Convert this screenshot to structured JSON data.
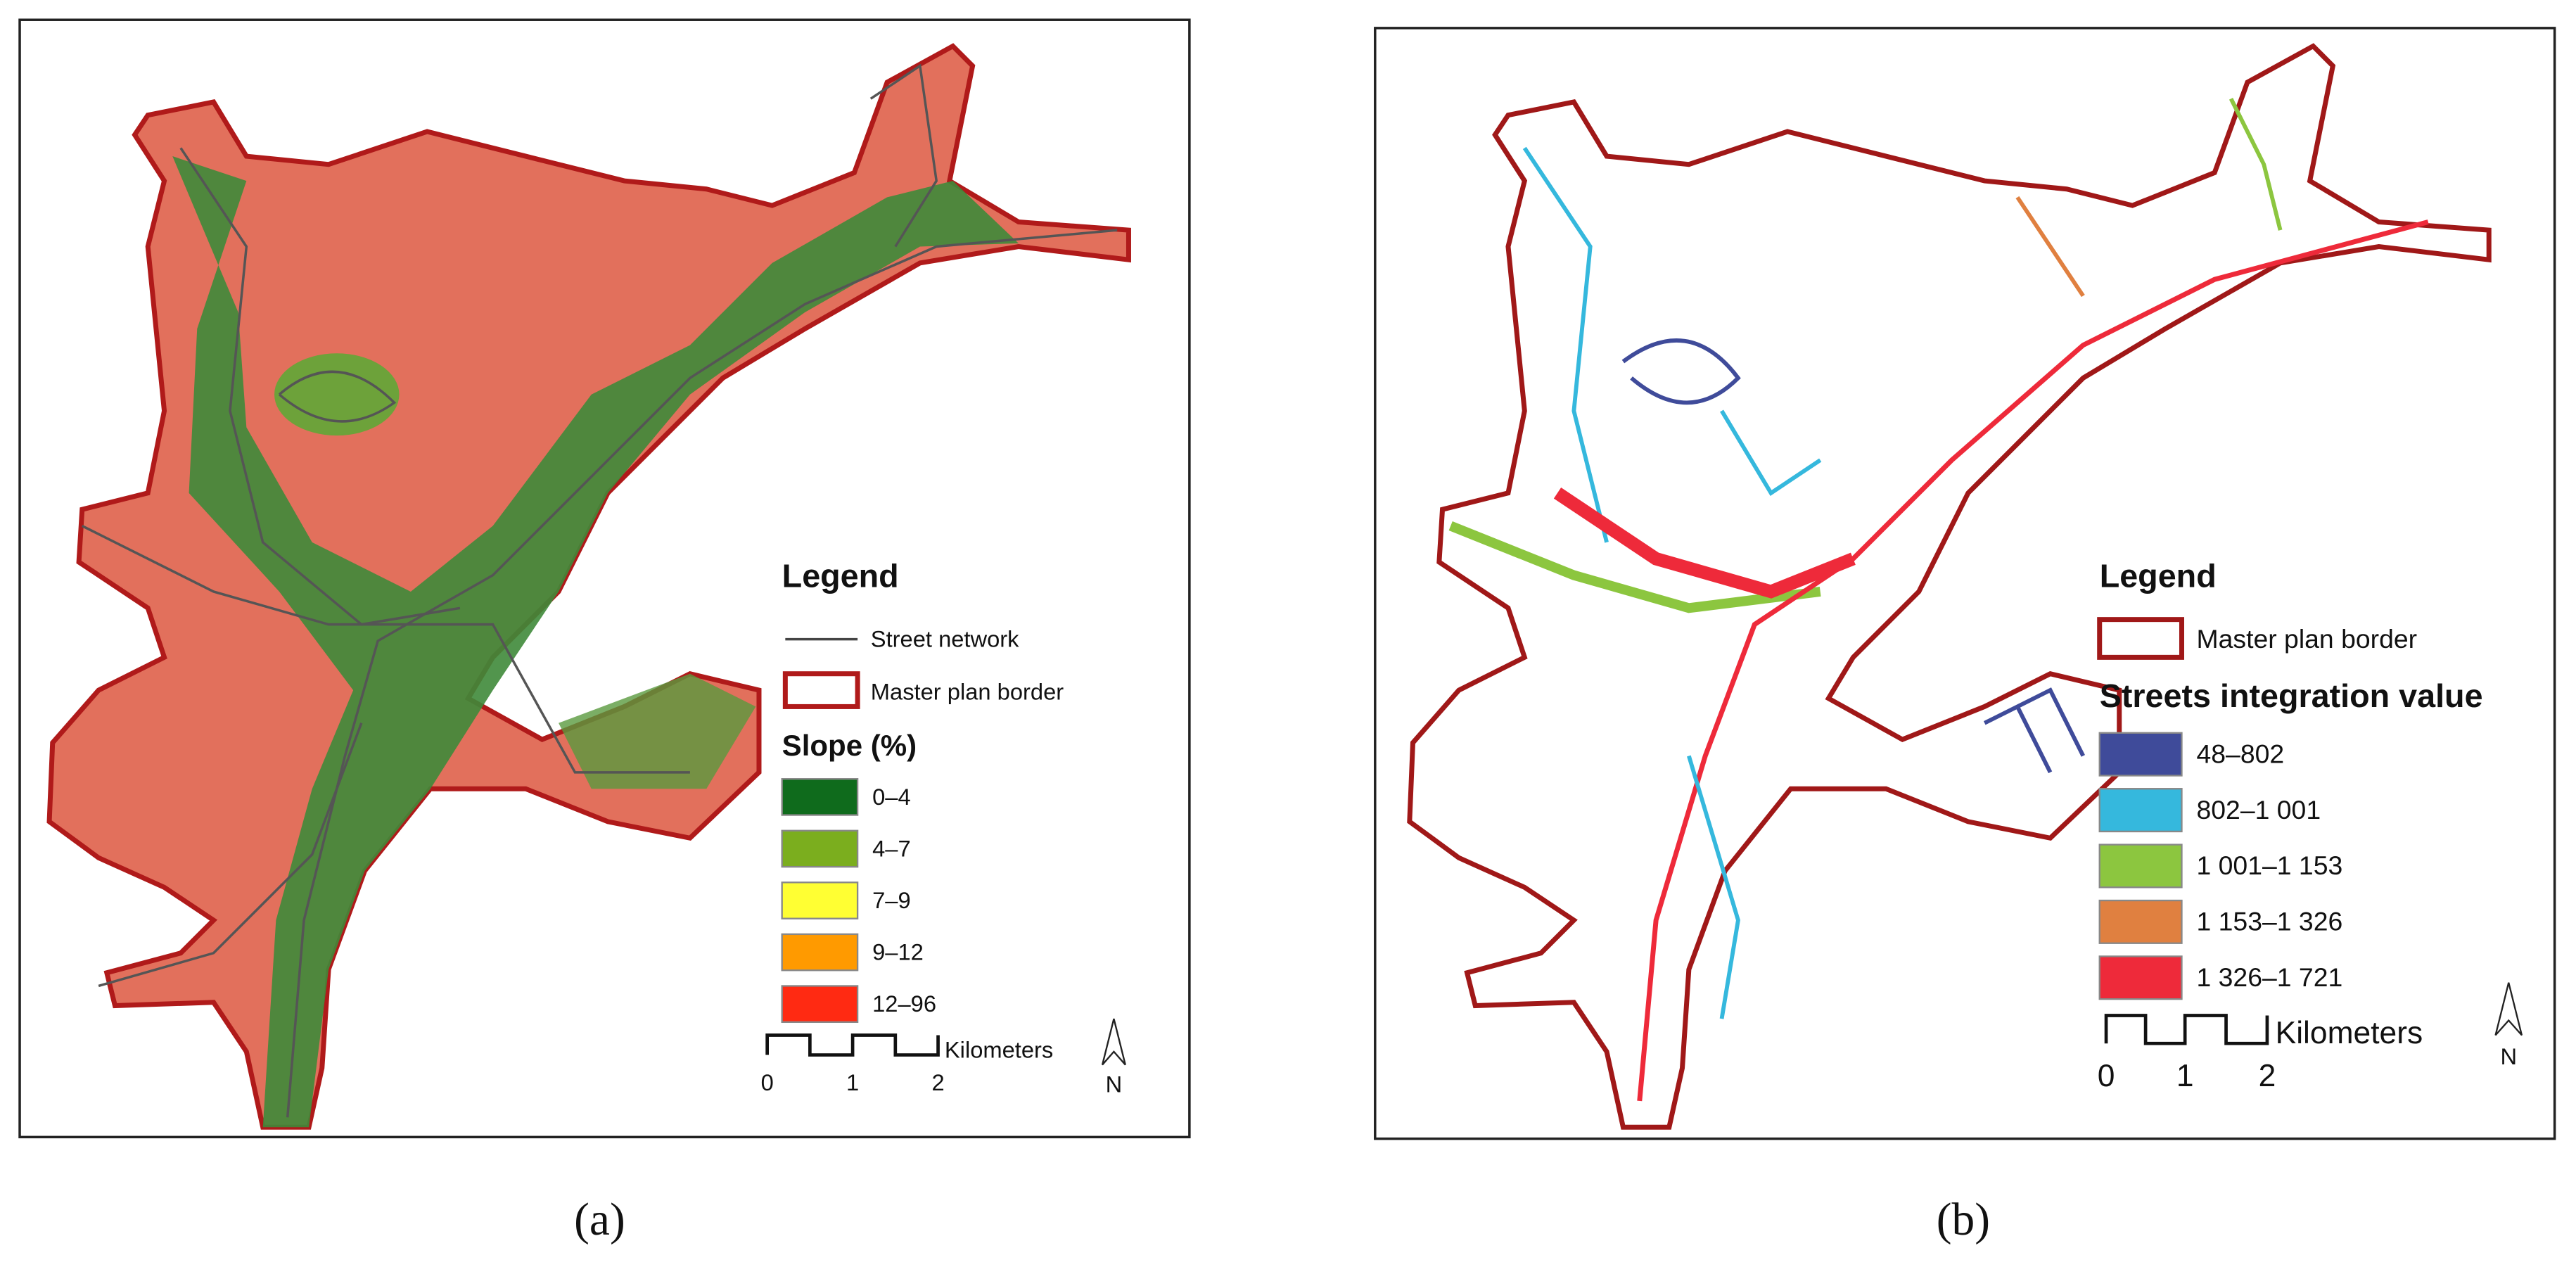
{
  "panels": [
    {
      "label": "(a)",
      "legend": {
        "title": "Legend",
        "street_network": "Street network",
        "border": "Master plan border",
        "classes_title": "Slope (%)",
        "classes": [
          {
            "label": "0–4",
            "color": "#0f6b1c"
          },
          {
            "label": "4–7",
            "color": "#7bae1e"
          },
          {
            "label": "7–9",
            "color": "#ffff33"
          },
          {
            "label": "9–12",
            "color": "#ff9a00"
          },
          {
            "label": "12–96",
            "color": "#ff2a12"
          }
        ]
      },
      "scale": {
        "unit": "Kilometers",
        "ticks": [
          "0",
          "1",
          "2"
        ]
      },
      "north": "N"
    },
    {
      "label": "(b)",
      "legend": {
        "title": "Legend",
        "border": "Master plan border",
        "classes_title": "Streets integration value",
        "classes": [
          {
            "label": "48–802",
            "color": "#3f4b9a"
          },
          {
            "label": "802–1 001",
            "color": "#35b8dd"
          },
          {
            "label": "1 001–1 153",
            "color": "#8cc63f"
          },
          {
            "label": "1 153–1 326",
            "color": "#e08040"
          },
          {
            "label": "1 326–1 721",
            "color": "#ee2a3a"
          }
        ]
      },
      "scale": {
        "unit": "Kilometers",
        "ticks": [
          "0",
          "1",
          "2"
        ]
      },
      "north": "N"
    }
  ]
}
